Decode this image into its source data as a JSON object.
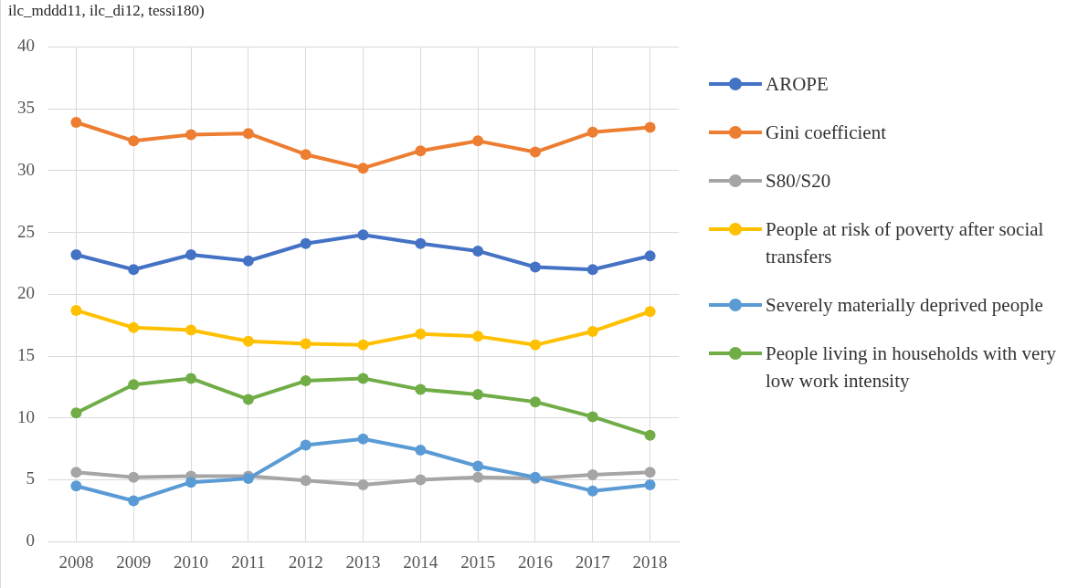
{
  "chart_data": {
    "type": "line",
    "annotations": [
      "ilc_mddd11, ilc_di12, tessi180)"
    ],
    "categories": [
      "2008",
      "2009",
      "2010",
      "2011",
      "2012",
      "2013",
      "2014",
      "2015",
      "2016",
      "2017",
      "2018"
    ],
    "series": [
      {
        "name": "AROPE",
        "color": "#4472c4",
        "values": [
          23.2,
          22.0,
          23.2,
          22.7,
          24.1,
          24.8,
          24.1,
          23.5,
          22.2,
          22.0,
          23.1
        ]
      },
      {
        "name": "Gini coefficient",
        "color": "#ed7d31",
        "values": [
          33.9,
          32.4,
          32.9,
          33.0,
          31.3,
          30.2,
          31.6,
          32.4,
          31.5,
          33.1,
          33.5
        ]
      },
      {
        "name": "S80/S20",
        "color": "#a5a5a5",
        "values": [
          5.6,
          5.2,
          5.3,
          5.3,
          4.95,
          4.6,
          5.0,
          5.2,
          5.1,
          5.4,
          5.6
        ]
      },
      {
        "name": "People at risk of poverty after social transfers",
        "color": "#ffc000",
        "values": [
          18.7,
          17.3,
          17.1,
          16.2,
          16.0,
          15.9,
          16.8,
          16.6,
          15.9,
          17.0,
          18.6
        ]
      },
      {
        "name": "Severely materially deprived people",
        "color": "#5b9bd5",
        "values": [
          4.5,
          3.3,
          4.8,
          5.1,
          7.8,
          8.3,
          7.4,
          6.1,
          5.2,
          4.1,
          4.6
        ]
      },
      {
        "name": "People living in households with very low work intensity",
        "color": "#70ad47",
        "values": [
          10.4,
          12.7,
          13.2,
          11.5,
          13.0,
          13.2,
          12.3,
          11.9,
          11.3,
          10.1,
          8.6
        ]
      }
    ],
    "ylim": [
      0,
      40
    ],
    "yticks": [
      0,
      5,
      10,
      15,
      20,
      25,
      30,
      35,
      40
    ],
    "grid": true,
    "legend": "right",
    "marker": "circle",
    "line_style": "solid"
  }
}
